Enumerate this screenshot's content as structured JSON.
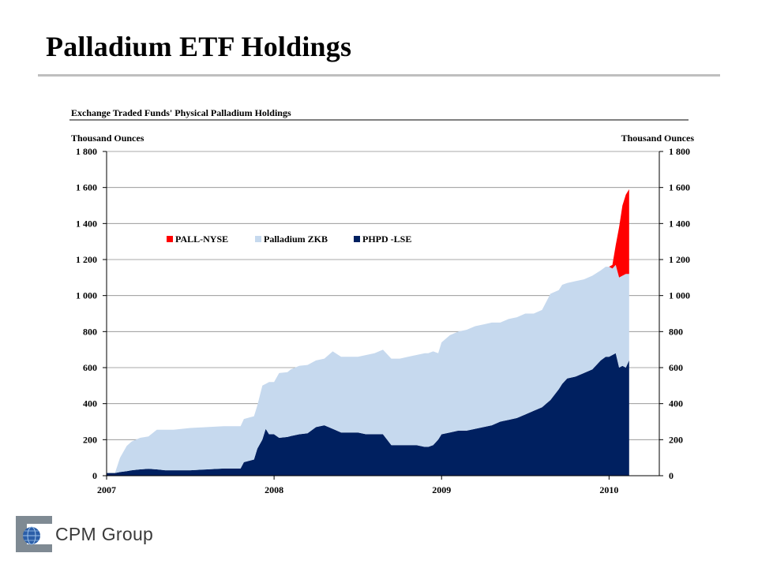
{
  "slide": {
    "title": "Palladium ETF Holdings",
    "logo_text": "CPM Group",
    "logo_icon": "globe-icon"
  },
  "colors": {
    "pall": "#ff0000",
    "zkb": "#c6d9ee",
    "phpd": "#002060",
    "title_rule": "#bfbfbf"
  },
  "chart_data": {
    "type": "area",
    "stacked": true,
    "title": "Exchange Traded Funds' Physical Palladium Holdings",
    "ylabel_left": "Thousand Ounces",
    "ylabel_right": "Thousand Ounces",
    "ylim": [
      0,
      1800
    ],
    "yticks": [
      0,
      200,
      400,
      600,
      800,
      1000,
      1200,
      1400,
      1600,
      1800
    ],
    "ytick_labels": [
      "0",
      "200",
      "400",
      "600",
      "800",
      "1 000",
      "1 200",
      "1 400",
      "1 600",
      "1 800"
    ],
    "xlim": [
      2007,
      2010.3
    ],
    "xticks": [
      2007,
      2008,
      2009,
      2010
    ],
    "xtick_labels": [
      "2007",
      "2008",
      "2009",
      "2010"
    ],
    "grid": "horizontal",
    "legend_position": "upper-left",
    "x": [
      2007.0,
      2007.05,
      2007.08,
      2007.12,
      2007.15,
      2007.2,
      2007.25,
      2007.3,
      2007.35,
      2007.4,
      2007.5,
      2007.6,
      2007.7,
      2007.8,
      2007.82,
      2007.88,
      2007.9,
      2007.93,
      2007.95,
      2007.97,
      2008.0,
      2008.03,
      2008.08,
      2008.1,
      2008.15,
      2008.2,
      2008.25,
      2008.3,
      2008.35,
      2008.4,
      2008.45,
      2008.5,
      2008.55,
      2008.6,
      2008.65,
      2008.7,
      2008.72,
      2008.75,
      2008.8,
      2008.85,
      2008.9,
      2008.92,
      2008.95,
      2008.98,
      2009.0,
      2009.05,
      2009.1,
      2009.15,
      2009.2,
      2009.25,
      2009.3,
      2009.35,
      2009.4,
      2009.45,
      2009.5,
      2009.55,
      2009.6,
      2009.65,
      2009.7,
      2009.72,
      2009.75,
      2009.8,
      2009.85,
      2009.9,
      2009.95,
      2009.98,
      2010.0,
      2010.02,
      2010.04,
      2010.06,
      2010.08,
      2010.1,
      2010.12
    ],
    "series": [
      {
        "name": "PHPD -LSE",
        "values": [
          15,
          15,
          20,
          25,
          30,
          35,
          38,
          35,
          30,
          30,
          30,
          35,
          40,
          40,
          75,
          90,
          150,
          200,
          260,
          230,
          230,
          210,
          215,
          220,
          230,
          235,
          270,
          280,
          260,
          240,
          240,
          240,
          230,
          230,
          230,
          170,
          170,
          170,
          170,
          170,
          160,
          160,
          170,
          200,
          230,
          240,
          250,
          250,
          260,
          270,
          280,
          300,
          310,
          320,
          340,
          360,
          380,
          420,
          480,
          510,
          540,
          550,
          570,
          590,
          640,
          660,
          660,
          670,
          680,
          600,
          610,
          600,
          640
        ]
      },
      {
        "name": "Palladium ZKB",
        "values": [
          0,
          0,
          80,
          140,
          160,
          175,
          180,
          220,
          225,
          225,
          235,
          235,
          235,
          235,
          240,
          240,
          240,
          300,
          250,
          290,
          290,
          360,
          360,
          370,
          380,
          380,
          370,
          370,
          430,
          420,
          420,
          420,
          440,
          450,
          470,
          480,
          480,
          480,
          490,
          500,
          520,
          520,
          520,
          480,
          510,
          540,
          550,
          560,
          570,
          570,
          570,
          550,
          560,
          560,
          560,
          540,
          540,
          590,
          550,
          550,
          530,
          530,
          520,
          520,
          500,
          500,
          500,
          480,
          490,
          500,
          500,
          520,
          480
        ]
      },
      {
        "name": "PALL-NYSE",
        "values": [
          0,
          0,
          0,
          0,
          0,
          0,
          0,
          0,
          0,
          0,
          0,
          0,
          0,
          0,
          0,
          0,
          0,
          0,
          0,
          0,
          0,
          0,
          0,
          0,
          0,
          0,
          0,
          0,
          0,
          0,
          0,
          0,
          0,
          0,
          0,
          0,
          0,
          0,
          0,
          0,
          0,
          0,
          0,
          0,
          0,
          0,
          0,
          0,
          0,
          0,
          0,
          0,
          0,
          0,
          0,
          0,
          0,
          0,
          0,
          0,
          0,
          0,
          0,
          0,
          0,
          0,
          0,
          20,
          110,
          280,
          390,
          440,
          470
        ]
      }
    ],
    "legend": [
      "PALL-NYSE",
      "Palladium ZKB",
      "PHPD -LSE"
    ]
  }
}
